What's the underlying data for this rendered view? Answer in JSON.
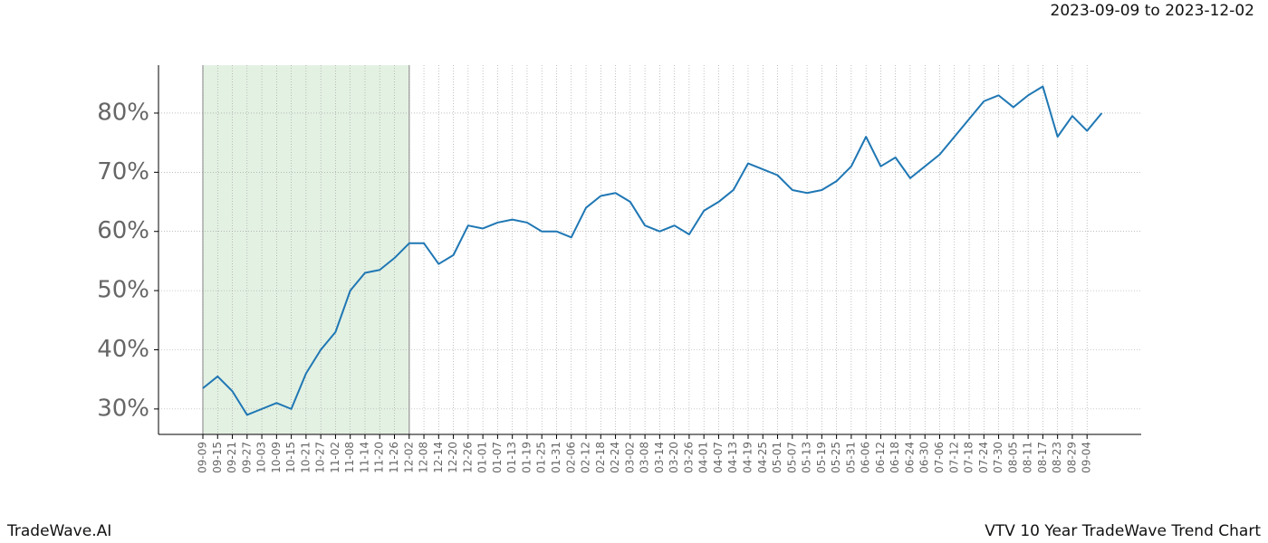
{
  "chart_data": {
    "type": "line",
    "title": "2023-09-09 to 2023-12-02",
    "footer_left": "TradeWave.AI",
    "footer_right": "VTV 10 Year TradeWave Trend Chart",
    "categories": [
      "09-09",
      "09-15",
      "09-21",
      "09-27",
      "10-03",
      "10-09",
      "10-15",
      "10-21",
      "10-27",
      "11-02",
      "11-08",
      "11-14",
      "11-20",
      "11-26",
      "12-02",
      "12-08",
      "12-14",
      "12-20",
      "12-26",
      "01-01",
      "01-07",
      "01-13",
      "01-19",
      "01-25",
      "01-31",
      "02-06",
      "02-12",
      "02-18",
      "02-24",
      "03-02",
      "03-08",
      "03-14",
      "03-20",
      "03-26",
      "04-01",
      "04-07",
      "04-13",
      "04-19",
      "04-25",
      "05-01",
      "05-07",
      "05-13",
      "05-19",
      "05-25",
      "05-31",
      "06-06",
      "06-12",
      "06-18",
      "06-24",
      "06-30",
      "07-06",
      "07-12",
      "07-18",
      "07-24",
      "07-30",
      "08-05",
      "08-11",
      "08-17",
      "08-23",
      "08-29",
      "09-04",
      null
    ],
    "values": [
      33.5,
      35.5,
      33,
      29,
      30,
      31,
      30,
      36,
      40,
      43,
      50,
      53,
      53.5,
      55.5,
      58,
      58,
      54.5,
      56,
      61,
      60.5,
      61.5,
      62,
      61.5,
      60,
      60,
      59,
      64,
      66,
      66.5,
      65,
      61,
      60,
      61,
      59.5,
      63.5,
      65,
      67,
      71.5,
      70.5,
      69.5,
      67,
      66.5,
      67,
      68.5,
      71,
      76,
      71,
      72.5,
      69,
      71,
      73,
      76,
      79,
      82,
      83,
      81,
      83,
      84.5,
      76,
      79.5,
      77,
      80
    ],
    "color": "#1f77b4",
    "highlight": [
      "09-09",
      "12-02"
    ],
    "highlight_color": "#e3f1e3",
    "ylim": [
      25.7,
      88.1
    ],
    "yticks": [
      {
        "value": 30,
        "label": "30%"
      },
      {
        "value": 40,
        "label": "40%"
      },
      {
        "value": 50,
        "label": "50%"
      },
      {
        "value": 60,
        "label": "60%"
      },
      {
        "value": 70,
        "label": "70%"
      },
      {
        "value": 80,
        "label": "80%"
      }
    ],
    "grid": true
  }
}
